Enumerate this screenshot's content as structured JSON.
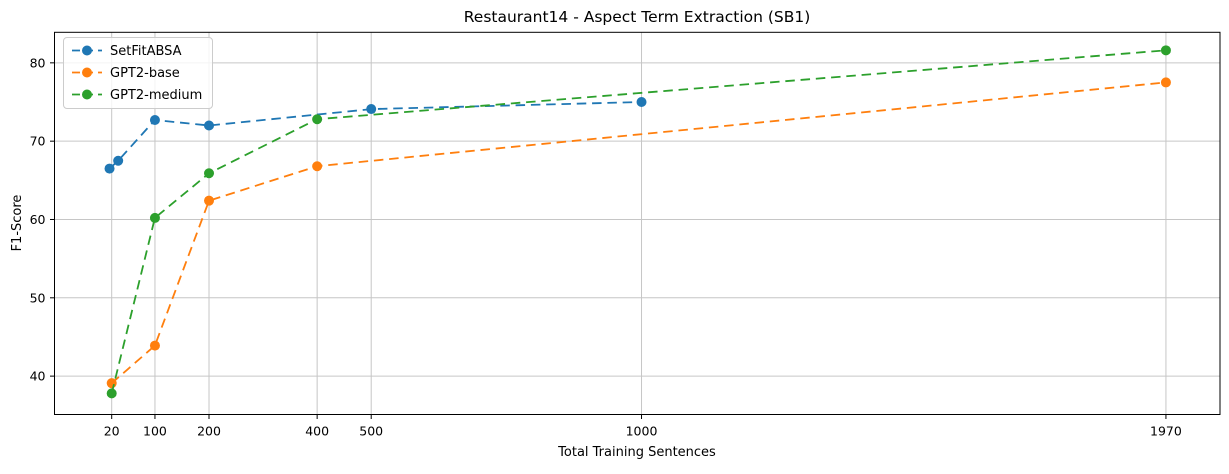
{
  "chart_data": {
    "type": "line",
    "title": "Restaurant14 - Aspect Term Extraction (SB1)",
    "xlabel": "Total Training Sentences",
    "ylabel": "F1-Score",
    "linestyle": "dashed",
    "marker": "circle",
    "grid": true,
    "legend_position": "upper-left",
    "xlim": [
      -85.8,
      2070.0
    ],
    "ylim": [
      35.1,
      83.9
    ],
    "xticks": [
      20,
      100,
      200,
      400,
      500,
      1000,
      1970
    ],
    "yticks": [
      40,
      50,
      60,
      70,
      80
    ],
    "series": [
      {
        "name": "SetFitABSA",
        "color": "#1f77b4",
        "x": [
          16,
          32,
          100,
          200,
          500,
          1000
        ],
        "y": [
          66.5,
          67.5,
          72.7,
          72.0,
          74.1,
          75.0
        ]
      },
      {
        "name": "GPT2-base",
        "color": "#ff7f0e",
        "x": [
          20,
          100,
          200,
          400,
          1970
        ],
        "y": [
          39.1,
          43.9,
          62.4,
          66.8,
          77.5
        ]
      },
      {
        "name": "GPT2-medium",
        "color": "#2ca02c",
        "x": [
          20,
          100,
          200,
          400,
          1970
        ],
        "y": [
          37.8,
          60.2,
          65.9,
          72.8,
          81.6
        ]
      }
    ],
    "style": {
      "grid_color": "#c6c6c6",
      "spine_color": "#000000",
      "legend_border_color": "#cccccc",
      "background": "#ffffff"
    }
  }
}
